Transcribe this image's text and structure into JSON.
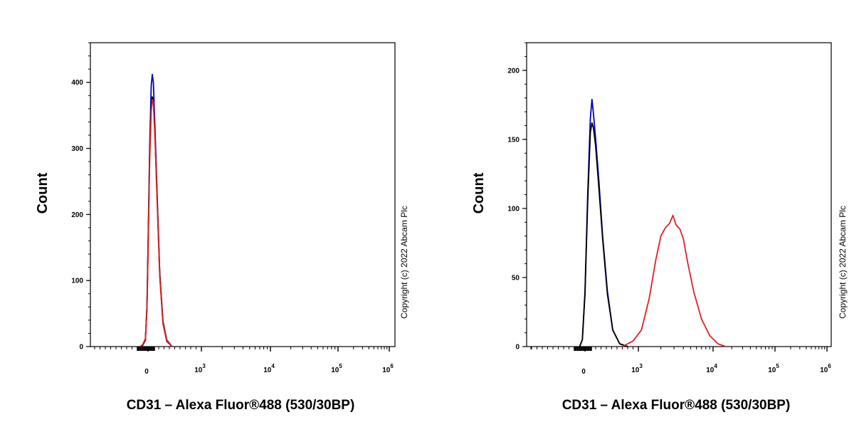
{
  "chart_data": [
    {
      "type": "area",
      "title": "",
      "xlabel": "CD31 – Alexa Fluor®488 (530/30BP)",
      "ylabel": "Count",
      "copyright": "Copyright (c) 2022 Abcam Plc",
      "x_scale": "biexponential (logicle)",
      "x_ticks": [
        "0",
        "10^3",
        "10^4",
        "10^5",
        "10^6"
      ],
      "y_ticks": [
        "0",
        "100",
        "200",
        "300",
        "400"
      ],
      "ylim": [
        0,
        460
      ],
      "grid": false,
      "series": [
        {
          "color": "#0000cc",
          "values": [
            [
              -150,
              0
            ],
            [
              -100,
              2
            ],
            [
              -50,
              10
            ],
            [
              -20,
              60
            ],
            [
              0,
              150
            ],
            [
              30,
              300
            ],
            [
              60,
              395
            ],
            [
              80,
              412
            ],
            [
              100,
              400
            ],
            [
              130,
              330
            ],
            [
              170,
              230
            ],
            [
              220,
              110
            ],
            [
              280,
              35
            ],
            [
              350,
              8
            ],
            [
              450,
              0
            ]
          ]
        },
        {
          "color": "#000000",
          "values": [
            [
              -150,
              0
            ],
            [
              -100,
              2
            ],
            [
              -50,
              10
            ],
            [
              -20,
              60
            ],
            [
              0,
              145
            ],
            [
              30,
              290
            ],
            [
              60,
              365
            ],
            [
              80,
              378
            ],
            [
              100,
              372
            ],
            [
              130,
              320
            ],
            [
              170,
              225
            ],
            [
              220,
              110
            ],
            [
              280,
              38
            ],
            [
              350,
              10
            ],
            [
              450,
              0
            ]
          ]
        },
        {
          "color": "#dd2222",
          "values": [
            [
              -150,
              0
            ],
            [
              -100,
              3
            ],
            [
              -50,
              12
            ],
            [
              -20,
              55
            ],
            [
              0,
              135
            ],
            [
              30,
              280
            ],
            [
              60,
              355
            ],
            [
              80,
              374
            ],
            [
              100,
              370
            ],
            [
              130,
              315
            ],
            [
              170,
              220
            ],
            [
              220,
              105
            ],
            [
              280,
              35
            ],
            [
              350,
              9
            ],
            [
              450,
              0
            ]
          ]
        }
      ]
    },
    {
      "type": "area",
      "title": "",
      "xlabel": "CD31 – Alexa Fluor®488 (530/30BP)",
      "ylabel": "Count",
      "copyright": "Copyright (c) 2022 Abcam Plc",
      "x_scale": "biexponential (logicle)",
      "x_ticks": [
        "0",
        "10^3",
        "10^4",
        "10^5",
        "10^6"
      ],
      "y_ticks": [
        "0",
        "50",
        "100",
        "150",
        "200"
      ],
      "ylim": [
        0,
        220
      ],
      "grid": false,
      "series": [
        {
          "color": "#0000cc",
          "values": [
            [
              -100,
              0
            ],
            [
              -50,
              5
            ],
            [
              0,
              40
            ],
            [
              50,
              110
            ],
            [
              100,
              165
            ],
            [
              130,
              179
            ],
            [
              160,
              168
            ],
            [
              200,
              150
            ],
            [
              260,
              120
            ],
            [
              330,
              80
            ],
            [
              420,
              40
            ],
            [
              520,
              12
            ],
            [
              650,
              2
            ],
            [
              800,
              0
            ]
          ]
        },
        {
          "color": "#000000",
          "values": [
            [
              -100,
              0
            ],
            [
              -50,
              5
            ],
            [
              0,
              38
            ],
            [
              50,
              105
            ],
            [
              100,
              155
            ],
            [
              130,
              162
            ],
            [
              160,
              158
            ],
            [
              200,
              145
            ],
            [
              260,
              115
            ],
            [
              330,
              78
            ],
            [
              420,
              38
            ],
            [
              520,
              12
            ],
            [
              650,
              2
            ],
            [
              800,
              0
            ]
          ]
        },
        {
          "color": "#dd2222",
          "values": [
            [
              700,
              0
            ],
            [
              900,
              4
            ],
            [
              1100,
              12
            ],
            [
              1400,
              35
            ],
            [
              1700,
              62
            ],
            [
              2000,
              80
            ],
            [
              2300,
              86
            ],
            [
              2600,
              89
            ],
            [
              2900,
              95
            ],
            [
              3200,
              88
            ],
            [
              3600,
              85
            ],
            [
              4000,
              78
            ],
            [
              4600,
              60
            ],
            [
              5500,
              40
            ],
            [
              7000,
              20
            ],
            [
              9000,
              8
            ],
            [
              12000,
              2
            ],
            [
              16000,
              0
            ]
          ]
        }
      ]
    }
  ]
}
